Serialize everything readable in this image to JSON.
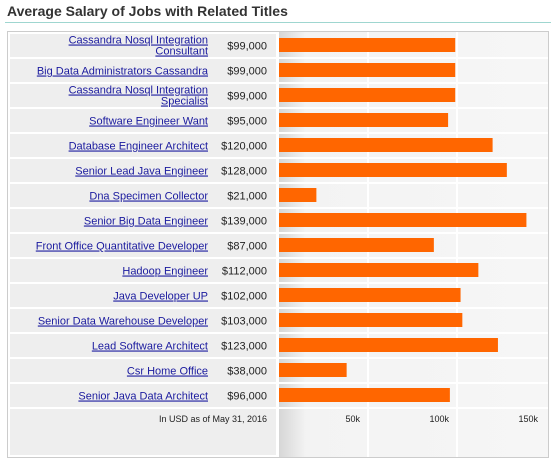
{
  "title": "Average Salary of Jobs with Related Titles",
  "chart_data": {
    "type": "bar",
    "orientation": "horizontal",
    "title": "Average Salary of Jobs with Related Titles",
    "categories": [
      "Cassandra Nosql Integration Consultant",
      "Big Data Administrators Cassandra",
      "Cassandra Nosql Integration Specialist",
      "Software Engineer Want",
      "Database Engineer Architect",
      "Senior Lead Java Engineer",
      "Dna Specimen Collector",
      "Senior Big Data Engineer",
      "Front Office Quantitative Developer",
      "Hadoop Engineer",
      "Java Developer UP",
      "Senior Data Warehouse Developer",
      "Lead Software Architect",
      "Csr Home Office",
      "Senior Java Data Architect"
    ],
    "category_lines": [
      [
        "Cassandra Nosql Integration",
        "Consultant"
      ],
      [
        "Big Data Administrators Cassandra"
      ],
      [
        "Cassandra Nosql Integration",
        "Specialist"
      ],
      [
        "Software Engineer Want"
      ],
      [
        "Database Engineer Architect"
      ],
      [
        "Senior Lead Java Engineer"
      ],
      [
        "Dna Specimen Collector"
      ],
      [
        "Senior Big Data Engineer"
      ],
      [
        "Front Office Quantitative Developer"
      ],
      [
        "Hadoop Engineer"
      ],
      [
        "Java Developer UP"
      ],
      [
        "Senior Data Warehouse Developer"
      ],
      [
        "Lead Software Architect"
      ],
      [
        "Csr Home Office"
      ],
      [
        "Senior Java Data Architect"
      ]
    ],
    "values": [
      99000,
      99000,
      99000,
      95000,
      120000,
      128000,
      21000,
      139000,
      87000,
      112000,
      102000,
      103000,
      123000,
      38000,
      96000
    ],
    "value_labels": [
      "$99,000",
      "$99,000",
      "$99,000",
      "$95,000",
      "$120,000",
      "$128,000",
      "$21,000",
      "$139,000",
      "$87,000",
      "$112,000",
      "$102,000",
      "$103,000",
      "$123,000",
      "$38,000",
      "$96,000"
    ],
    "xlim": [
      0,
      150000
    ],
    "x_ticks": [
      50000,
      100000,
      150000
    ],
    "x_tick_labels": [
      "50k",
      "100k",
      "150k"
    ],
    "footnote": "In USD as of May 31, 2016",
    "grid": true,
    "colors": {
      "bar": "#ff6600",
      "label_bg": "#eeeeee",
      "plot_bg": "#f5f5f5",
      "link": "#1a1a9e"
    }
  }
}
